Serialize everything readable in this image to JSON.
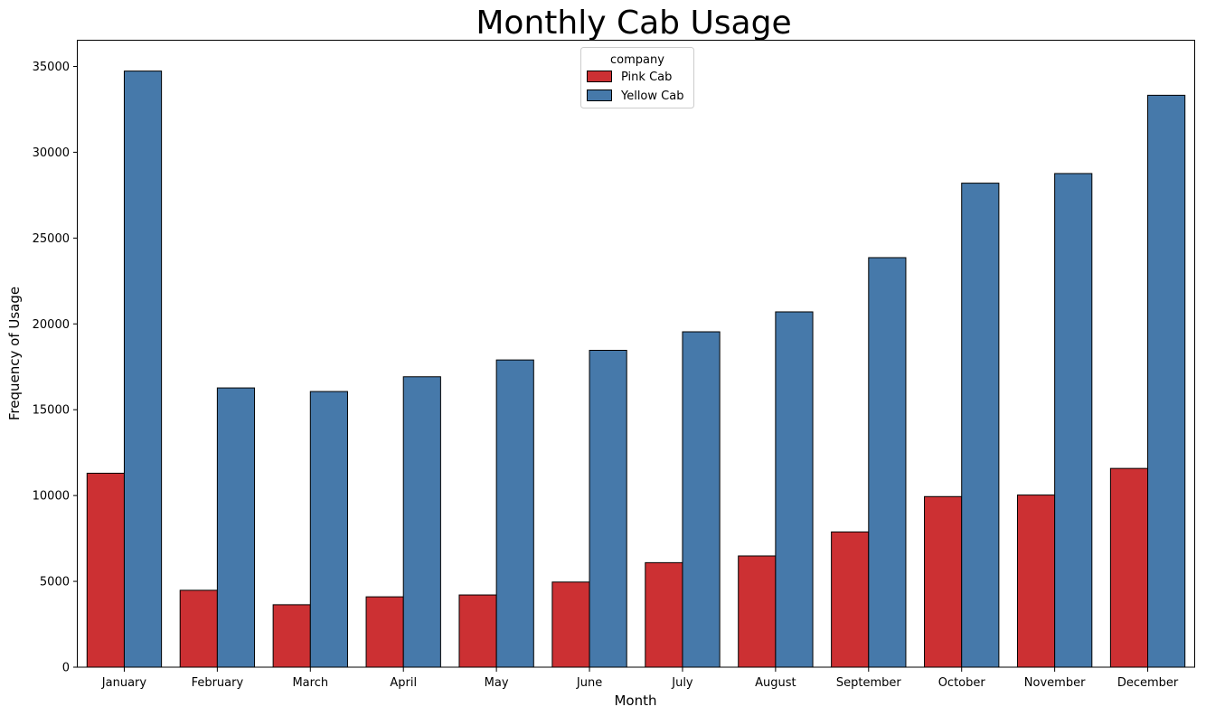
{
  "chart_data": {
    "type": "bar",
    "title": "Monthly Cab Usage",
    "xlabel": "Month",
    "ylabel": "Frequency of Usage",
    "categories": [
      "January",
      "February",
      "March",
      "April",
      "May",
      "June",
      "July",
      "August",
      "September",
      "October",
      "November",
      "December"
    ],
    "series": [
      {
        "name": "Pink Cab",
        "color": "#cc3033",
        "values": [
          11300,
          4480,
          3640,
          4100,
          4210,
          4960,
          6090,
          6480,
          7880,
          9940,
          10030,
          11580
        ]
      },
      {
        "name": "Yellow Cab",
        "color": "#4679aa",
        "values": [
          34730,
          16270,
          16060,
          16920,
          17900,
          18460,
          19540,
          20700,
          23860,
          28200,
          28760,
          33320
        ]
      }
    ],
    "ylim": [
      0,
      36500
    ],
    "yticks": [
      0,
      5000,
      10000,
      15000,
      20000,
      25000,
      30000,
      35000
    ],
    "legend": {
      "title": "company",
      "position": "upper-center"
    },
    "grid": false
  }
}
